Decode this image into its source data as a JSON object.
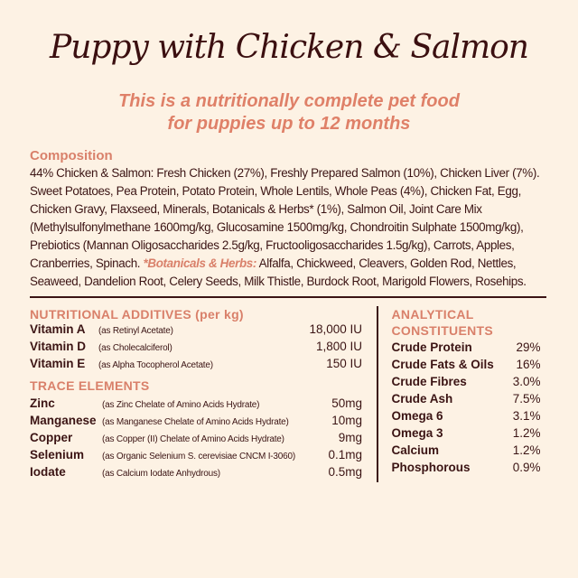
{
  "title": "Puppy with Chicken & Salmon",
  "subtitle": [
    "This is a nutritionally complete pet food",
    "for puppies up to 12 months"
  ],
  "composition": {
    "heading": "Composition",
    "text": "44% Chicken & Salmon: Fresh Chicken (27%), Freshly Prepared Salmon (10%), Chicken Liver (7%). Sweet Potatoes, Pea Protein, Potato Protein, Whole Lentils, Whole Peas (4%), Chicken Fat, Egg, Chicken Gravy, Flaxseed, Minerals, Botanicals & Herbs* (1%), Salmon Oil, Joint Care Mix (Methylsulfonylmethane 1600mg/kg, Glucosamine 1500mg/kg, Chondroitin Sulphate 1500mg/kg), Prebiotics (Mannan Oligosaccharides 2.5g/kg, Fructooligosaccharides 1.5g/kg), Carrots, Apples, Cranberries, Spinach.",
    "botanicals_heading": "*Botanicals & Herbs:",
    "botanicals_text": " Alfalfa, Chickweed, Cleavers, Golden Rod, Nettles, Seaweed, Dandelion Root, Celery Seeds, Milk Thistle, Burdock Root, Marigold Flowers, Rosehips."
  },
  "nutritional_additives": {
    "heading": "NUTRITIONAL ADDITIVES (per kg)",
    "items": [
      {
        "name": "Vitamin A",
        "desc": "(as Retinyl Acetate)",
        "value": "18,000 IU"
      },
      {
        "name": "Vitamin D",
        "desc": "(as Cholecalciferol)",
        "value": "1,800 IU"
      },
      {
        "name": "Vitamin E",
        "desc": "(as Alpha Tocopherol Acetate)",
        "value": "150 IU"
      }
    ]
  },
  "trace_elements": {
    "heading": "TRACE ELEMENTS",
    "items": [
      {
        "name": "Zinc",
        "desc": "(as Zinc Chelate of Amino Acids Hydrate)",
        "value": "50mg"
      },
      {
        "name": "Manganese",
        "desc": "(as Manganese Chelate of Amino Acids Hydrate)",
        "value": "10mg"
      },
      {
        "name": "Copper",
        "desc": "(as Copper (II) Chelate of Amino Acids Hydrate)",
        "value": "9mg"
      },
      {
        "name": "Selenium",
        "desc": "(as Organic Selenium S. cerevisiae CNCM I-3060)",
        "value": "0.1mg"
      },
      {
        "name": "Iodate",
        "desc": "(as Calcium Iodate Anhydrous)",
        "value": "0.5mg"
      }
    ]
  },
  "analytical": {
    "heading": [
      "ANALYTICAL",
      "CONSTITUENTS"
    ],
    "items": [
      {
        "name": "Crude Protein",
        "value": "29%"
      },
      {
        "name": "Crude Fats & Oils",
        "value": "16%"
      },
      {
        "name": "Crude Fibres",
        "value": "3.0%"
      },
      {
        "name": "Crude Ash",
        "value": "7.5%"
      },
      {
        "name": "Omega 6",
        "value": "3.1%"
      },
      {
        "name": "Omega 3",
        "value": "1.2%"
      },
      {
        "name": "Calcium",
        "value": "1.2%"
      },
      {
        "name": "Phosphorous",
        "value": "0.9%"
      }
    ]
  },
  "colors": {
    "background": "#fdf2e4",
    "text": "#3b1414",
    "accent": "#d9806a"
  }
}
